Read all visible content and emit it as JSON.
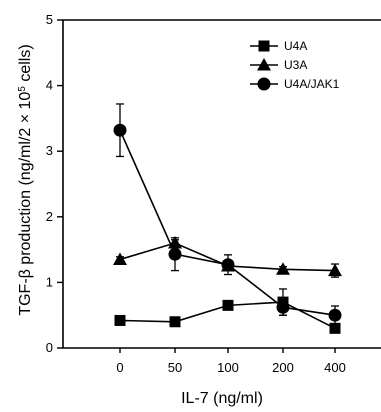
{
  "chart_data": {
    "type": "line",
    "categories": [
      "0",
      "50",
      "100",
      "200",
      "400"
    ],
    "xlabel": "IL-7 (ng/ml)",
    "ylabel_parts": [
      "TGF-β production (ng/ml/2 × 10",
      "5",
      " cells)"
    ],
    "ylim": [
      0,
      5
    ],
    "yticks": [
      "0",
      "1",
      "2",
      "3",
      "4",
      "5"
    ],
    "grid": false,
    "legend_position": "top-right",
    "series": [
      {
        "name": "U4A",
        "marker": "square",
        "values": [
          0.42,
          0.4,
          0.65,
          0.7,
          0.3
        ],
        "errors": [
          0.04,
          0.03,
          0.05,
          0.2,
          0.05
        ]
      },
      {
        "name": "U3A",
        "marker": "triangle",
        "values": [
          1.35,
          1.6,
          1.25,
          1.2,
          1.18
        ],
        "errors": [
          0.04,
          0.05,
          0.06,
          0.04,
          0.1
        ]
      },
      {
        "name": "U4A/JAK1",
        "marker": "circle",
        "values": [
          3.32,
          1.43,
          1.27,
          0.62,
          0.5
        ],
        "errors": [
          0.4,
          0.25,
          0.15,
          0.12,
          0.14
        ]
      }
    ]
  }
}
